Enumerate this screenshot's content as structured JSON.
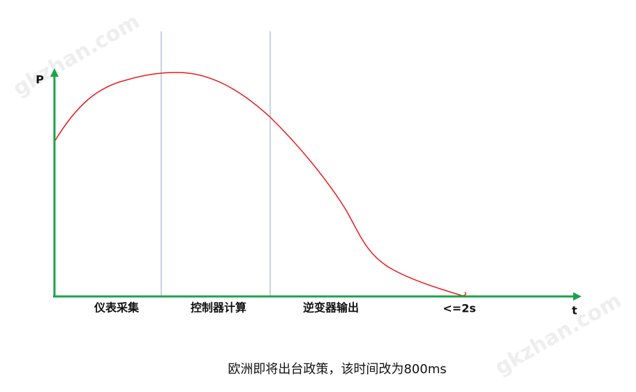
{
  "watermark": "gkzhan.com",
  "axes": {
    "y_label": "P",
    "x_label": "t"
  },
  "stages": [
    "仪表采集",
    "控制器计算",
    "逆变器输出",
    "<=2s"
  ],
  "caption": "欧洲即将出台政策，该时间改为800ms"
}
